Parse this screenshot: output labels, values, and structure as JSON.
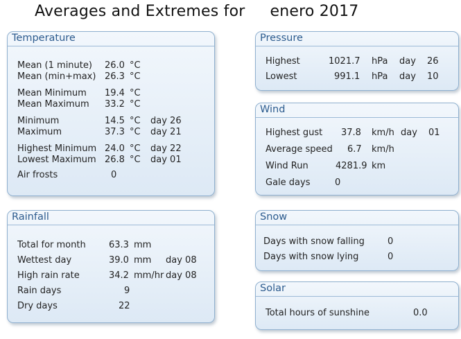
{
  "page": {
    "title_prefix": "Averages and Extremes for",
    "title_period": "enero 2017"
  },
  "temperature": {
    "heading": "Temperature",
    "rows": [
      {
        "label": "Mean (1 minute)",
        "value": "26.0",
        "unit": "°C",
        "day": ""
      },
      {
        "label": "Mean (min+max)",
        "value": "26.3",
        "unit": "°C",
        "day": ""
      },
      {
        "label": "Mean Minimum",
        "value": "19.4",
        "unit": "°C",
        "day": ""
      },
      {
        "label": "Mean Maximum",
        "value": "33.2",
        "unit": "°C",
        "day": ""
      },
      {
        "label": "Minimum",
        "value": "14.5",
        "unit": "°C",
        "day": "day 26"
      },
      {
        "label": "Maximum",
        "value": "37.3",
        "unit": "°C",
        "day": "day 21"
      },
      {
        "label": "Highest Minimum",
        "value": "24.0",
        "unit": "°C",
        "day": "day 22"
      },
      {
        "label": "Lowest Maximum",
        "value": "26.8",
        "unit": "°C",
        "day": "day 01"
      },
      {
        "label": "Air frosts",
        "value": "0",
        "unit": "",
        "day": ""
      }
    ]
  },
  "rainfall": {
    "heading": "Rainfall",
    "rows": [
      {
        "label": "Total for month",
        "value": "63.3",
        "unit": "mm",
        "day": ""
      },
      {
        "label": "Wettest day",
        "value": "39.0",
        "unit": "mm",
        "day": "day 08"
      },
      {
        "label": "High rain rate",
        "value": "34.2",
        "unit": "mm/hr",
        "day": "day 08"
      },
      {
        "label": "Rain days",
        "value": "9",
        "unit": "",
        "day": ""
      },
      {
        "label": "Dry days",
        "value": "22",
        "unit": "",
        "day": ""
      }
    ]
  },
  "pressure": {
    "heading": "Pressure",
    "rows": [
      {
        "label": "Highest",
        "value": "1021.7",
        "unit": "hPa",
        "day_word": "day",
        "day": "26"
      },
      {
        "label": "Lowest",
        "value": "991.1",
        "unit": "hPa",
        "day_word": "day",
        "day": "10"
      }
    ]
  },
  "wind": {
    "heading": "Wind",
    "rows": [
      {
        "label": "Highest gust",
        "value": "37.8",
        "unit": "km/h",
        "day_word": "day",
        "day": "01"
      },
      {
        "label": "Average speed",
        "value": "6.7",
        "unit": "km/h",
        "day_word": "",
        "day": ""
      },
      {
        "label": "Wind Run",
        "value": "4281.9",
        "unit": "km",
        "day_word": "",
        "day": ""
      },
      {
        "label": "Gale days",
        "value": "0",
        "unit": "",
        "day_word": "",
        "day": ""
      }
    ]
  },
  "snow": {
    "heading": "Snow",
    "rows": [
      {
        "label": "Days with snow falling",
        "value": "0"
      },
      {
        "label": "Days with snow lying",
        "value": "0"
      }
    ]
  },
  "solar": {
    "heading": "Solar",
    "rows": [
      {
        "label": "Total hours of sunshine",
        "value": "0.0"
      }
    ]
  }
}
